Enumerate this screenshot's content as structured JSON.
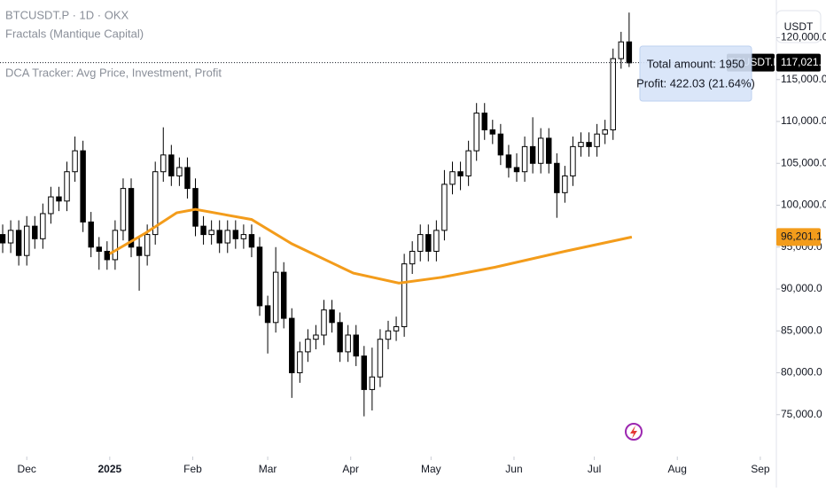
{
  "chart_data": {
    "type": "candlestick",
    "title": "BTCUSDT.P · 1D · OKX",
    "indicators": [
      "Fractals (Mantique Capital)",
      "DCA Tracker: Avg Price, Investment, Profit"
    ],
    "currency": "USDT",
    "symbol_label": "BTCUSDT.P",
    "tooltip": [
      "Total amount: 1950",
      "Profit: 422.03 (21.64%)"
    ],
    "xlim": [
      -10,
      280
    ],
    "xticks": [
      {
        "value": 0,
        "label": "Dec"
      },
      {
        "value": 31,
        "label": "2025"
      },
      {
        "value": 62,
        "label": "Feb"
      },
      {
        "value": 90,
        "label": "Mar"
      },
      {
        "value": 121,
        "label": "Apr"
      },
      {
        "value": 151,
        "label": "May"
      },
      {
        "value": 182,
        "label": "Jun"
      },
      {
        "value": 212,
        "label": "Jul"
      },
      {
        "value": 243,
        "label": "Aug"
      },
      {
        "value": 274,
        "label": "Sep"
      }
    ],
    "ylim": [
      70000,
      124500
    ],
    "yticks": [
      {
        "value": 75000,
        "label": "75,000.0"
      },
      {
        "value": 80000,
        "label": "80,000.0"
      },
      {
        "value": 85000,
        "label": "85,000.0"
      },
      {
        "value": 90000,
        "label": "90,000.0"
      },
      {
        "value": 95000,
        "label": "95,000.0"
      },
      {
        "value": 100000,
        "label": "100,000.0"
      },
      {
        "value": 105000,
        "label": "105,000.0"
      },
      {
        "value": 110000,
        "label": "110,000.0"
      },
      {
        "value": 115000,
        "label": "115,000.0"
      },
      {
        "value": 120000,
        "label": "120,000.0"
      }
    ],
    "last_price": {
      "value": 117021.2,
      "label": "117,021.2"
    },
    "x": [
      -9,
      -6,
      -3,
      0,
      3,
      6,
      9,
      12,
      15,
      18,
      21,
      24,
      27,
      30,
      33,
      36,
      39,
      42,
      45,
      48,
      51,
      54,
      57,
      60,
      63,
      66,
      69,
      72,
      75,
      78,
      81,
      84,
      87,
      90,
      93,
      96,
      99,
      102,
      105,
      108,
      111,
      114,
      117,
      120,
      123,
      126,
      129,
      132,
      135,
      138,
      141,
      144,
      147,
      150,
      153,
      156,
      159,
      162,
      165,
      168,
      171,
      174,
      177,
      180,
      183,
      186,
      189,
      192,
      195,
      198,
      201,
      204,
      207,
      210,
      213,
      216,
      219,
      222,
      225
    ],
    "open": [
      96500,
      95500,
      97000,
      94000,
      97500,
      96000,
      99000,
      101000,
      100500,
      104000,
      106500,
      98000,
      95000,
      94500,
      93500,
      97000,
      102000,
      95000,
      94000,
      96500,
      104000,
      106000,
      103500,
      104500,
      102000,
      97500,
      96500,
      97000,
      95500,
      97000,
      96000,
      96500,
      95000,
      88000,
      86000,
      92000,
      86500,
      80000,
      82500,
      84000,
      84500,
      87500,
      86000,
      82500,
      84500,
      82000,
      78000,
      79500,
      84000,
      85000,
      85500,
      93000,
      94500,
      96500,
      94500,
      97000,
      102500,
      104000,
      103500,
      106500,
      111000,
      109000,
      108500,
      106000,
      104500,
      104000,
      107000,
      105000,
      108000,
      105000,
      101500,
      103500,
      107000,
      107500,
      107000,
      108500,
      109000,
      117500,
      119500
    ],
    "high": [
      97700,
      98200,
      98200,
      98700,
      98700,
      100200,
      102200,
      102200,
      105200,
      108200,
      107700,
      99200,
      96200,
      95700,
      98200,
      103200,
      103200,
      96200,
      97700,
      105200,
      109300,
      107200,
      105700,
      105700,
      103200,
      98700,
      98200,
      98200,
      98200,
      98200,
      97700,
      97700,
      96200,
      89200,
      95000,
      93200,
      87700,
      83700,
      85200,
      85700,
      88700,
      88700,
      87200,
      85700,
      85700,
      83200,
      83000,
      85200,
      86200,
      86700,
      94200,
      95700,
      97700,
      97700,
      98200,
      104200,
      105200,
      105200,
      107700,
      112200,
      112200,
      110200,
      109700,
      107200,
      106200,
      108200,
      110500,
      109200,
      109200,
      106200,
      104700,
      108200,
      108700,
      108700,
      109700,
      110200,
      118700,
      120700,
      123000
    ],
    "low": [
      94300,
      94300,
      92800,
      92800,
      94800,
      94800,
      97800,
      99300,
      99300,
      102800,
      96800,
      93800,
      92300,
      92300,
      92300,
      95800,
      93800,
      89800,
      92800,
      95300,
      102800,
      102300,
      102300,
      100800,
      96300,
      95300,
      95300,
      94300,
      94300,
      94800,
      94800,
      93800,
      86800,
      82300,
      84800,
      85300,
      77000,
      78800,
      81300,
      82800,
      83300,
      84800,
      81300,
      81300,
      80800,
      74800,
      75500,
      78300,
      82800,
      83800,
      84300,
      91800,
      93300,
      93300,
      93300,
      95800,
      101300,
      101800,
      102300,
      105300,
      107800,
      107300,
      104800,
      103300,
      102800,
      102800,
      103800,
      103800,
      103800,
      98500,
      100300,
      102300,
      105800,
      105800,
      105800,
      107300,
      107800,
      116300,
      116500
    ],
    "close": [
      95500,
      97000,
      94000,
      97500,
      96000,
      99000,
      101000,
      100500,
      104000,
      106500,
      98000,
      95000,
      94500,
      93500,
      97000,
      102000,
      95000,
      94000,
      96500,
      104000,
      106000,
      103500,
      104500,
      102000,
      97500,
      96500,
      97000,
      95500,
      97000,
      96000,
      96500,
      95000,
      88000,
      86000,
      92000,
      86500,
      80000,
      82500,
      84000,
      84500,
      87500,
      86000,
      82500,
      84500,
      82000,
      78000,
      79500,
      84000,
      85000,
      85500,
      93000,
      94500,
      96500,
      94500,
      97000,
      102500,
      104000,
      103500,
      106500,
      111000,
      109000,
      108500,
      106000,
      104500,
      104000,
      107000,
      105000,
      108000,
      105000,
      101500,
      103500,
      107000,
      107500,
      107000,
      108500,
      109000,
      117500,
      119500,
      117000
    ],
    "up_color": "#ffffff",
    "down_color": "#000000",
    "ma": {
      "color": "#f39c1b",
      "x": [
        31,
        44,
        56,
        63,
        84,
        99,
        122,
        139,
        155,
        175,
        201,
        226
      ],
      "values": [
        94200,
        96600,
        99100,
        99500,
        98300,
        95400,
        91900,
        90700,
        91400,
        92600,
        94500,
        96201.1
      ],
      "label": "96,201.1"
    }
  }
}
